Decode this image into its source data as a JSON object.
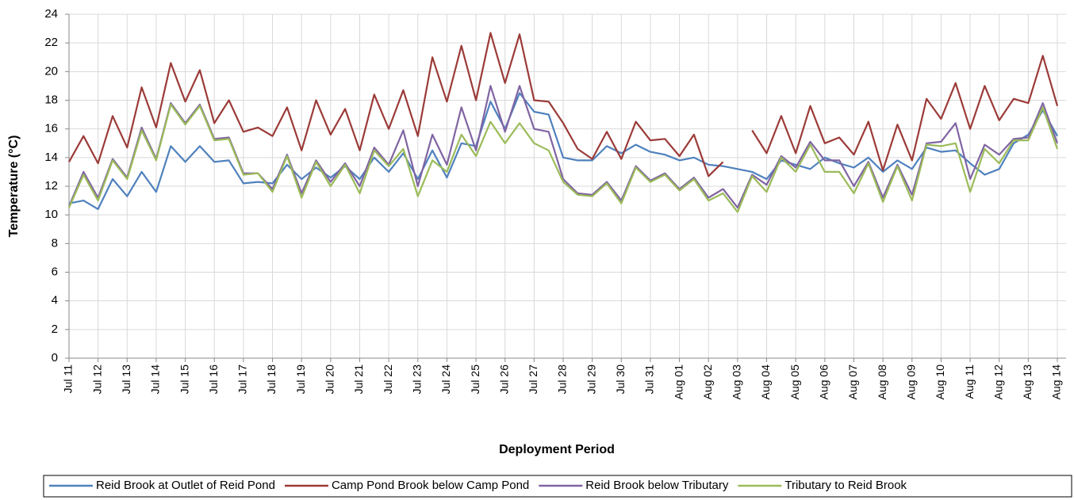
{
  "chart_data": {
    "type": "line",
    "x_label": "Deployment Period",
    "y_label": "Temperature (°C)",
    "grid": true,
    "legend_position": "bottom",
    "ylim": [
      0,
      24
    ],
    "yticks": [
      0,
      2,
      4,
      6,
      8,
      10,
      12,
      14,
      16,
      18,
      20,
      22,
      24
    ],
    "categories": [
      "Jul 11",
      null,
      "Jul 12",
      null,
      "Jul 13",
      null,
      "Jul 14",
      null,
      "Jul 15",
      null,
      "Jul 16",
      null,
      "Jul 17",
      null,
      "Jul 18",
      null,
      "Jul 19",
      null,
      "Jul 20",
      null,
      "Jul 21",
      null,
      "Jul 22",
      null,
      "Jul 23",
      null,
      "Jul 24",
      null,
      "Jul 25",
      null,
      "Jul 26",
      null,
      "Jul 27",
      null,
      "Jul 28",
      null,
      "Jul 29",
      null,
      "Jul 30",
      null,
      "Jul 31",
      null,
      "Aug 01",
      null,
      "Aug 02",
      null,
      "Aug 03",
      null,
      "Aug 04",
      null,
      "Aug 05",
      null,
      "Aug 06",
      null,
      "Aug 07",
      null,
      "Aug 08",
      null,
      "Aug 09",
      null,
      "Aug 10",
      null,
      "Aug 11",
      null,
      "Aug 12",
      null,
      "Aug 13",
      null,
      "Aug 14"
    ],
    "series": [
      {
        "name": "Reid Brook at Outlet of Reid Pond",
        "color": "#4f81bd",
        "values": [
          10.8,
          11.0,
          10.4,
          12.5,
          11.3,
          13.0,
          11.6,
          14.8,
          13.7,
          14.8,
          13.7,
          13.8,
          12.2,
          12.3,
          12.2,
          13.5,
          12.5,
          13.3,
          12.6,
          13.4,
          12.5,
          14.0,
          13.0,
          14.3,
          12.5,
          14.5,
          12.6,
          15.0,
          14.8,
          17.9,
          16.0,
          18.5,
          17.2,
          17.0,
          14.0,
          13.8,
          13.8,
          14.8,
          14.3,
          14.9,
          14.4,
          14.2,
          13.8,
          14.0,
          13.5,
          13.4,
          13.2,
          13.0,
          12.5,
          13.8,
          13.5,
          13.2,
          14.0,
          13.6,
          13.3,
          14.0,
          13.0,
          13.8,
          13.2,
          14.7,
          14.4,
          14.5,
          13.6,
          12.8,
          13.2,
          15.0,
          15.6,
          17.3,
          15.5
        ]
      },
      {
        "name": "Camp Pond Brook below Camp Pond",
        "color": "#9b3b38",
        "values": [
          13.7,
          15.5,
          13.6,
          16.9,
          14.7,
          18.9,
          16.1,
          20.6,
          17.9,
          20.1,
          16.4,
          18.0,
          15.8,
          16.1,
          15.5,
          17.5,
          14.5,
          18.0,
          15.6,
          17.4,
          14.5,
          18.4,
          16.0,
          18.7,
          15.5,
          21.0,
          17.9,
          21.8,
          18.0,
          22.7,
          19.2,
          22.6,
          18.0,
          17.9,
          16.4,
          14.6,
          13.9,
          15.8,
          13.9,
          16.5,
          15.2,
          15.3,
          14.1,
          15.6,
          12.7,
          13.7,
          null,
          15.9,
          14.3,
          16.9,
          14.3,
          17.6,
          15.0,
          15.4,
          14.2,
          16.5,
          13.1,
          16.3,
          13.8,
          18.1,
          16.7,
          19.2,
          16.0,
          19.0,
          16.6,
          18.1,
          17.8,
          21.1,
          17.6
        ]
      },
      {
        "name": "Reid Brook below Tributary",
        "color": "#8064a2",
        "values": [
          10.6,
          13.0,
          11.2,
          13.9,
          12.6,
          16.1,
          13.9,
          17.8,
          16.4,
          17.7,
          15.3,
          15.4,
          12.9,
          12.9,
          11.8,
          14.2,
          11.5,
          13.8,
          12.3,
          13.6,
          12.0,
          14.7,
          13.5,
          15.9,
          12.0,
          15.6,
          13.5,
          17.5,
          14.5,
          19.0,
          15.8,
          19.0,
          16.0,
          15.8,
          12.5,
          11.5,
          11.4,
          12.3,
          11.0,
          13.4,
          12.4,
          12.9,
          11.8,
          12.6,
          11.2,
          11.8,
          10.5,
          12.8,
          12.1,
          14.1,
          13.3,
          15.1,
          13.8,
          13.8,
          12.0,
          13.7,
          11.2,
          13.5,
          11.4,
          15.0,
          15.1,
          16.4,
          12.5,
          14.9,
          14.2,
          15.3,
          15.4,
          17.8,
          15.0
        ]
      },
      {
        "name": "Tributary to Reid Brook",
        "color": "#9bbb59",
        "values": [
          10.5,
          12.8,
          11.0,
          13.8,
          12.5,
          15.9,
          13.8,
          17.7,
          16.3,
          17.6,
          15.2,
          15.3,
          12.8,
          12.9,
          11.6,
          14.1,
          11.2,
          13.7,
          12.0,
          13.5,
          11.5,
          14.5,
          13.4,
          14.6,
          11.3,
          13.8,
          13.0,
          15.6,
          14.1,
          16.5,
          15.0,
          16.4,
          15.0,
          14.5,
          12.3,
          11.4,
          11.3,
          12.2,
          10.8,
          13.3,
          12.3,
          12.8,
          11.7,
          12.5,
          11.0,
          11.5,
          10.2,
          12.7,
          11.6,
          14.0,
          13.0,
          14.9,
          13.0,
          13.0,
          11.5,
          13.6,
          10.9,
          13.4,
          11.0,
          14.9,
          14.8,
          15.0,
          11.6,
          14.6,
          13.6,
          15.2,
          15.2,
          17.5,
          14.6
        ]
      }
    ]
  }
}
